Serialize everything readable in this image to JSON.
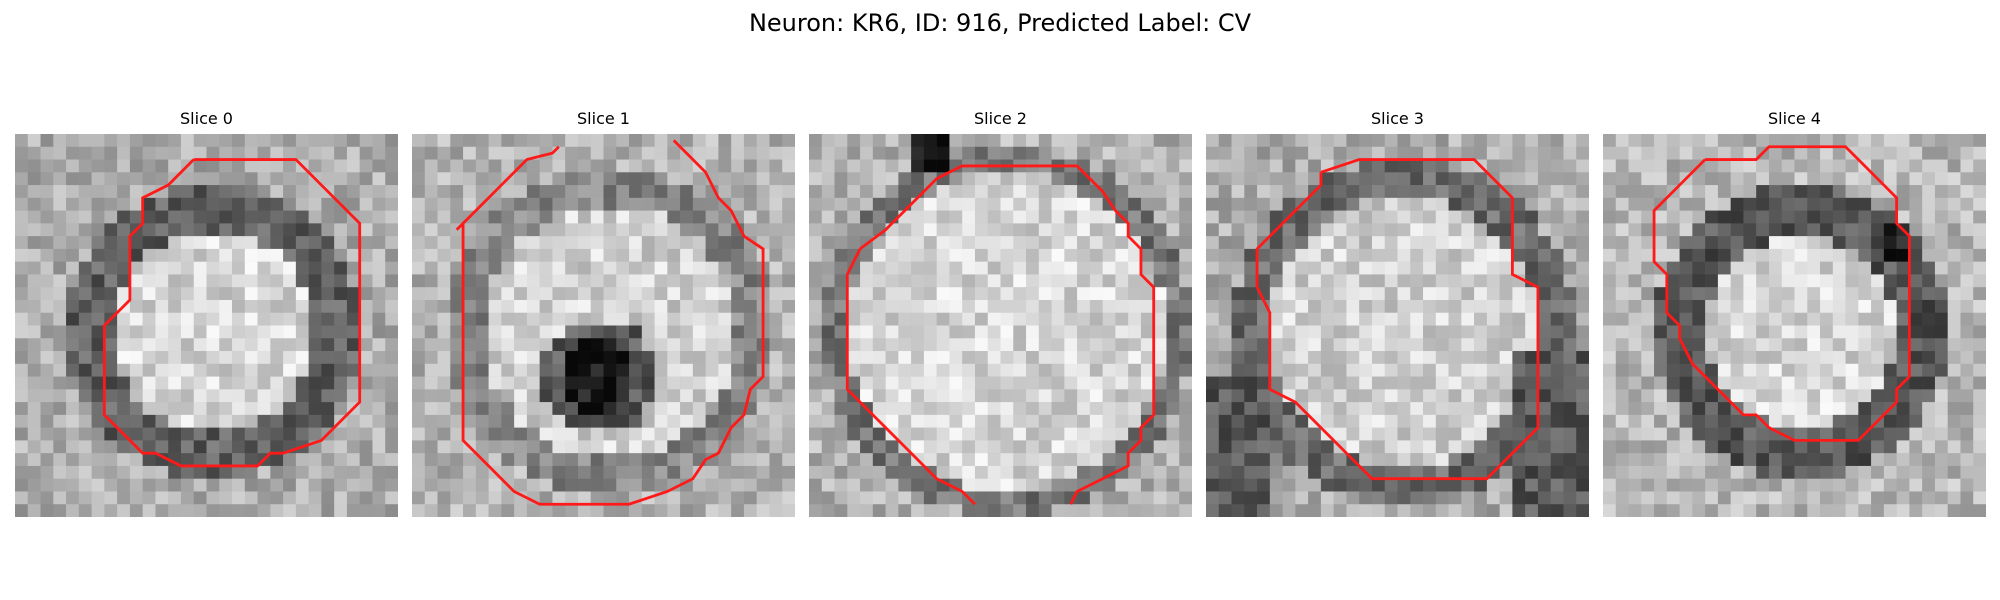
{
  "figure": {
    "title": "Neuron: KR6, ID: 916, Predicted Label: CV"
  },
  "slices": [
    {
      "title": "Slice 0",
      "texture": "bright center with dark ring",
      "contour": [
        [
          14,
          2
        ],
        [
          22,
          2
        ],
        [
          24,
          4
        ],
        [
          27,
          7
        ],
        [
          27,
          21
        ],
        [
          24,
          24
        ],
        [
          21,
          25
        ],
        [
          20,
          25
        ],
        [
          19,
          26
        ],
        [
          13,
          26
        ],
        [
          11,
          25
        ],
        [
          10,
          25
        ],
        [
          7,
          22
        ],
        [
          7,
          15
        ],
        [
          9,
          13
        ],
        [
          9,
          8
        ],
        [
          10,
          7
        ],
        [
          10,
          5
        ],
        [
          12,
          4
        ],
        [
          14,
          2
        ]
      ]
    },
    {
      "title": "Slice 1",
      "texture": "bright center with a dark spot",
      "contour": [
        [
          3.5,
          7.5
        ],
        [
          5,
          6
        ],
        [
          6,
          5
        ],
        [
          7,
          4
        ],
        [
          9,
          2
        ],
        [
          11,
          1.5
        ],
        [
          11.5,
          1
        ]
      ],
      "contour2": [
        [
          20.5,
          0.5
        ],
        [
          22,
          2
        ],
        [
          23,
          3
        ],
        [
          23.5,
          4
        ],
        [
          24,
          5
        ],
        [
          25,
          6
        ],
        [
          25.5,
          7
        ],
        [
          26,
          8
        ],
        [
          27.5,
          9
        ],
        [
          27.5,
          19
        ],
        [
          26.5,
          20
        ],
        [
          26,
          22
        ],
        [
          25,
          23
        ],
        [
          24,
          25
        ],
        [
          23,
          25.5
        ],
        [
          22,
          27
        ],
        [
          20,
          28
        ],
        [
          17,
          29
        ],
        [
          10,
          29
        ],
        [
          8,
          28
        ],
        [
          5,
          25
        ],
        [
          4,
          24
        ],
        [
          4,
          7
        ]
      ]
    },
    {
      "title": "Slice 2",
      "texture": "large bright cell",
      "contour": [
        [
          4,
          9
        ],
        [
          6,
          7.5
        ],
        [
          9,
          4.5
        ],
        [
          10,
          3.5
        ],
        [
          11,
          3
        ],
        [
          12,
          2.5
        ],
        [
          21,
          2.5
        ],
        [
          23,
          4.5
        ],
        [
          24,
          6
        ],
        [
          25,
          7
        ],
        [
          25,
          8
        ],
        [
          26,
          9
        ],
        [
          26,
          11
        ],
        [
          27,
          12
        ],
        [
          27,
          22
        ],
        [
          26,
          23
        ],
        [
          26,
          24
        ],
        [
          25,
          25
        ],
        [
          25,
          26
        ],
        [
          24,
          26.5
        ],
        [
          23,
          27
        ],
        [
          22,
          27.5
        ],
        [
          21,
          28
        ],
        [
          20.5,
          29
        ]
      ],
      "contour2": [
        [
          4,
          9
        ],
        [
          3,
          11
        ],
        [
          3,
          20
        ],
        [
          8,
          25
        ],
        [
          10,
          27
        ],
        [
          11,
          27.5
        ],
        [
          12,
          28
        ],
        [
          13,
          29
        ]
      ]
    },
    {
      "title": "Slice 3",
      "texture": "bright center with mottled dark rim",
      "contour": [
        [
          9,
          3
        ],
        [
          12,
          2
        ],
        [
          21,
          2
        ],
        [
          24,
          5
        ],
        [
          24,
          11
        ],
        [
          26,
          12
        ],
        [
          26,
          23
        ],
        [
          24,
          25
        ],
        [
          22,
          27
        ],
        [
          13,
          27
        ],
        [
          12,
          26
        ],
        [
          10,
          24
        ],
        [
          9,
          23
        ],
        [
          8,
          22
        ],
        [
          7,
          21
        ],
        [
          5,
          20
        ],
        [
          5,
          14
        ],
        [
          4,
          12
        ],
        [
          4,
          9
        ],
        [
          6,
          7
        ],
        [
          9,
          4
        ],
        [
          9,
          3
        ]
      ]
    },
    {
      "title": "Slice 4",
      "texture": "bright center with dark thick ring",
      "contour": [
        [
          8,
          2
        ],
        [
          12,
          2
        ],
        [
          13,
          1
        ],
        [
          19,
          1
        ],
        [
          21,
          3
        ],
        [
          22,
          4
        ],
        [
          23,
          5
        ],
        [
          23,
          7
        ],
        [
          24,
          8
        ],
        [
          24,
          19
        ],
        [
          23,
          20
        ],
        [
          23,
          21
        ],
        [
          20,
          24
        ],
        [
          15,
          24
        ],
        [
          13,
          23
        ],
        [
          12,
          22
        ],
        [
          11,
          22
        ],
        [
          9,
          20
        ],
        [
          7,
          18
        ],
        [
          6,
          16
        ],
        [
          6,
          15
        ],
        [
          5,
          14
        ],
        [
          5,
          11
        ],
        [
          4,
          10
        ],
        [
          4,
          6
        ],
        [
          6,
          4
        ],
        [
          8,
          2
        ]
      ]
    }
  ]
}
